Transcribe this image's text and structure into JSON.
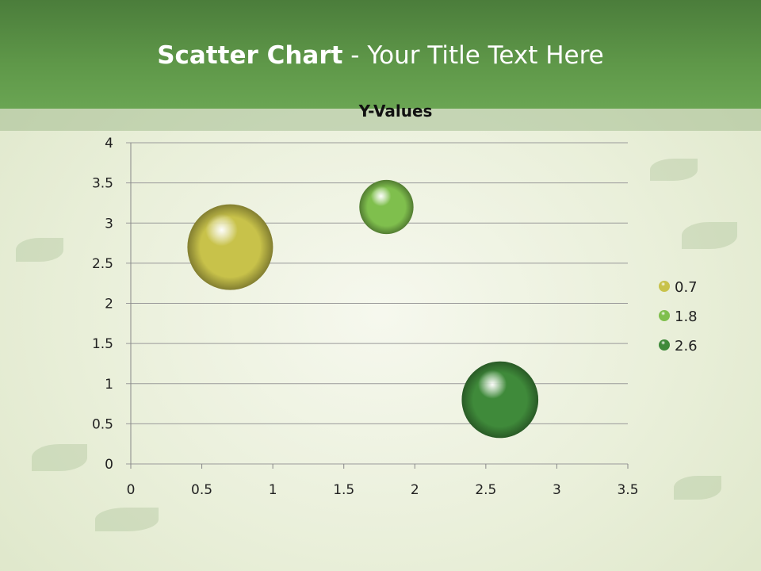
{
  "slide": {
    "title_bold": "Scatter Chart",
    "title_rest": " - Your Title Text Here"
  },
  "colors": {
    "header": "#5f9849",
    "background": "#e9efd9"
  },
  "chart_data": {
    "type": "bubble",
    "title": "Y-Values",
    "xlim": [
      0,
      3.5
    ],
    "ylim": [
      0,
      4
    ],
    "xticks": [
      "0",
      "0.5",
      "1",
      "1.5",
      "2",
      "2.5",
      "3",
      "3.5"
    ],
    "yticks": [
      "0",
      "0.5",
      "1",
      "1.5",
      "2",
      "2.5",
      "3",
      "3.5",
      "4"
    ],
    "grid": "horizontal",
    "legend_placement": "right",
    "series": [
      {
        "name": "0.7",
        "x": 0.7,
        "y": 2.7,
        "size": 10,
        "color": "#c8c24a"
      },
      {
        "name": "1.8",
        "x": 1.8,
        "y": 3.2,
        "size": 4,
        "color": "#7fbf4d"
      },
      {
        "name": "2.6",
        "x": 2.6,
        "y": 0.8,
        "size": 8,
        "color": "#3f8a3a"
      }
    ]
  }
}
